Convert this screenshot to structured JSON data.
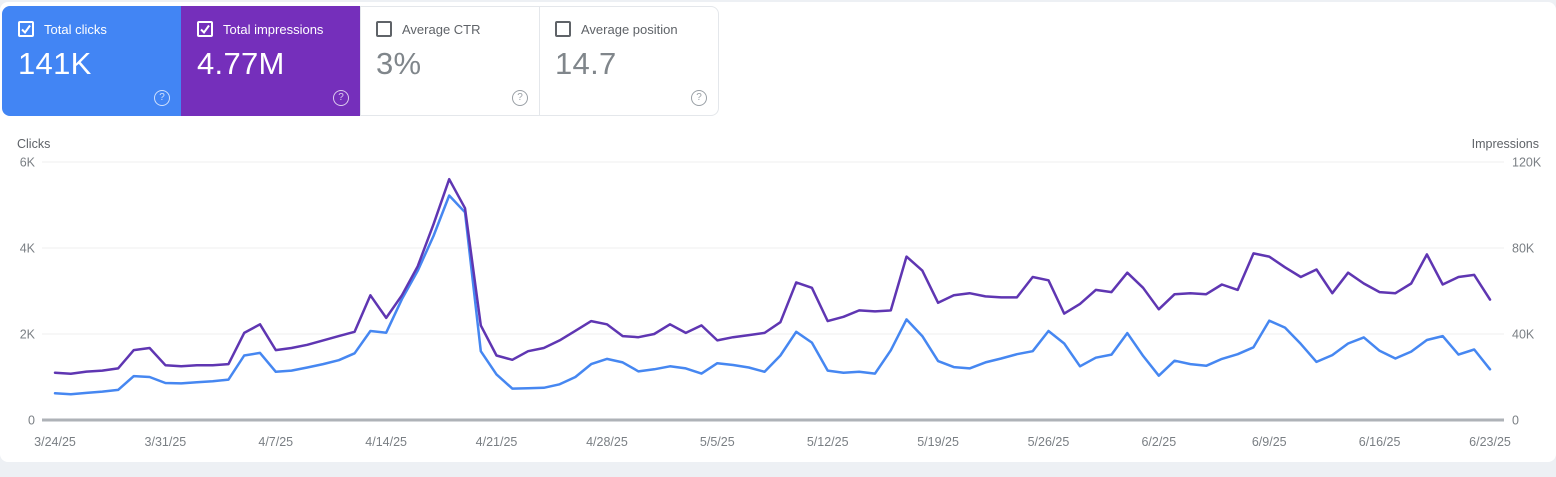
{
  "ui": {
    "help_glyph": "?"
  },
  "cards": [
    {
      "label": "Total clicks",
      "value": "141K",
      "selected": true,
      "color": "#4285f4"
    },
    {
      "label": "Total impressions",
      "value": "4.77M",
      "selected": true,
      "color": "#752fbb"
    },
    {
      "label": "Average CTR",
      "value": "3%",
      "selected": false,
      "color": "#ffffff"
    },
    {
      "label": "Average position",
      "value": "14.7",
      "selected": false,
      "color": "#ffffff"
    }
  ],
  "chart_data": {
    "type": "line",
    "title": "",
    "grid": true,
    "legend_position": "none",
    "x_tick_step": 7,
    "x_tick_labels": [
      "3/24/25",
      "3/31/25",
      "4/7/25",
      "4/14/25",
      "4/21/25",
      "4/28/25",
      "5/5/25",
      "5/12/25",
      "5/19/25",
      "5/26/25",
      "6/2/25",
      "6/9/25",
      "6/16/25",
      "6/23/25"
    ],
    "left_axis": {
      "title": "Clicks",
      "range": [
        0,
        6000
      ],
      "ticks": [
        "0",
        "2K",
        "4K",
        "6K"
      ]
    },
    "right_axis": {
      "title": "Impressions",
      "range": [
        0,
        120000
      ],
      "ticks": [
        "0",
        "40K",
        "80K",
        "120K"
      ]
    },
    "x": [
      "3/24/25",
      "3/25/25",
      "3/26/25",
      "3/27/25",
      "3/28/25",
      "3/29/25",
      "3/30/25",
      "3/31/25",
      "4/1/25",
      "4/2/25",
      "4/3/25",
      "4/4/25",
      "4/5/25",
      "4/6/25",
      "4/7/25",
      "4/8/25",
      "4/9/25",
      "4/10/25",
      "4/11/25",
      "4/12/25",
      "4/13/25",
      "4/14/25",
      "4/15/25",
      "4/16/25",
      "4/17/25",
      "4/18/25",
      "4/19/25",
      "4/20/25",
      "4/21/25",
      "4/22/25",
      "4/23/25",
      "4/24/25",
      "4/25/25",
      "4/26/25",
      "4/27/25",
      "4/28/25",
      "4/29/25",
      "4/30/25",
      "5/1/25",
      "5/2/25",
      "5/3/25",
      "5/4/25",
      "5/5/25",
      "5/6/25",
      "5/7/25",
      "5/8/25",
      "5/9/25",
      "5/10/25",
      "5/11/25",
      "5/12/25",
      "5/13/25",
      "5/14/25",
      "5/15/25",
      "5/16/25",
      "5/17/25",
      "5/18/25",
      "5/19/25",
      "5/20/25",
      "5/21/25",
      "5/22/25",
      "5/23/25",
      "5/24/25",
      "5/25/25",
      "5/26/25",
      "5/27/25",
      "5/28/25",
      "5/29/25",
      "5/30/25",
      "5/31/25",
      "6/1/25",
      "6/2/25",
      "6/3/25",
      "6/4/25",
      "6/5/25",
      "6/6/25",
      "6/7/25",
      "6/8/25",
      "6/9/25",
      "6/10/25",
      "6/11/25",
      "6/12/25",
      "6/13/25",
      "6/14/25",
      "6/15/25",
      "6/16/25",
      "6/17/25",
      "6/18/25",
      "6/19/25",
      "6/20/25",
      "6/21/25",
      "6/22/25",
      "6/23/25"
    ],
    "series": [
      {
        "name": "Clicks",
        "axis": "left",
        "color": "#4687f1",
        "values": [
          620,
          600,
          630,
          660,
          700,
          1020,
          1000,
          860,
          850,
          880,
          900,
          940,
          1500,
          1560,
          1120,
          1150,
          1220,
          1300,
          1390,
          1550,
          2070,
          2030,
          2810,
          3470,
          4280,
          5220,
          4830,
          1600,
          1060,
          730,
          740,
          750,
          830,
          1000,
          1300,
          1420,
          1340,
          1130,
          1180,
          1250,
          1200,
          1080,
          1320,
          1280,
          1220,
          1120,
          1500,
          2050,
          1800,
          1150,
          1100,
          1120,
          1080,
          1620,
          2340,
          1950,
          1370,
          1230,
          1200,
          1340,
          1430,
          1530,
          1600,
          2070,
          1780,
          1250,
          1450,
          1520,
          2020,
          1490,
          1030,
          1380,
          1300,
          1260,
          1420,
          1530,
          1690,
          2310,
          2150,
          1770,
          1350,
          1510,
          1780,
          1920,
          1610,
          1430,
          1590,
          1860,
          1950,
          1520,
          1640,
          1180
        ]
      },
      {
        "name": "Impressions",
        "axis": "right",
        "color": "#5f36b2",
        "values": [
          22000,
          21500,
          22500,
          23000,
          24000,
          32500,
          33500,
          25500,
          25000,
          25500,
          25500,
          26000,
          40500,
          44500,
          32500,
          33500,
          35000,
          37000,
          39000,
          41000,
          58000,
          47500,
          58000,
          71500,
          91000,
          112000,
          98500,
          44000,
          30000,
          28000,
          32000,
          33500,
          37000,
          41500,
          46000,
          44500,
          39000,
          38500,
          40000,
          44500,
          40500,
          44000,
          37000,
          38500,
          39500,
          40500,
          45500,
          64000,
          61500,
          46000,
          48000,
          51000,
          50500,
          51000,
          76000,
          69500,
          54500,
          58000,
          59000,
          57500,
          57000,
          57000,
          66500,
          65000,
          49500,
          54000,
          60500,
          59500,
          68500,
          61500,
          51500,
          58500,
          59000,
          58500,
          63000,
          60500,
          77500,
          76000,
          71000,
          66500,
          70000,
          59000,
          68500,
          63500,
          59500,
          59000,
          63500,
          77000,
          63000,
          66500,
          67500,
          56000
        ]
      }
    ]
  }
}
